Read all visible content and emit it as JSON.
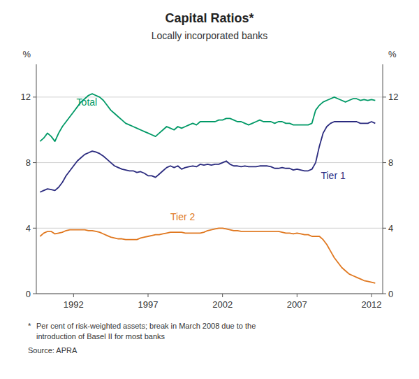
{
  "chart_data": {
    "type": "line",
    "title": "Capital Ratios*",
    "subtitle": "Locally incorporated banks",
    "ylabel": "%",
    "y2label": "%",
    "footnotes": [
      "*",
      "Per cent of risk-weighted assets; break in March 2008 due to the",
      "introduction of Basel II for most banks",
      "Source: APRA"
    ],
    "xlim": [
      1989.5,
      2012.75
    ],
    "xticks": [
      1992,
      1997,
      2002,
      2007,
      2012
    ],
    "ylim": [
      0,
      14
    ],
    "yticks": [
      0,
      4,
      8,
      12
    ],
    "y2lim": [
      0,
      14
    ],
    "y2ticks": [
      0,
      4,
      8,
      12
    ],
    "grid": true,
    "x": [
      1989.75,
      1990.0,
      1990.25,
      1990.5,
      1990.75,
      1991.0,
      1991.25,
      1991.5,
      1991.75,
      1992.0,
      1992.25,
      1992.5,
      1992.75,
      1993.0,
      1993.25,
      1993.5,
      1993.75,
      1994.0,
      1994.25,
      1994.5,
      1994.75,
      1995.0,
      1995.25,
      1995.5,
      1995.75,
      1996.0,
      1996.25,
      1996.5,
      1996.75,
      1997.0,
      1997.25,
      1997.5,
      1997.75,
      1998.0,
      1998.25,
      1998.5,
      1998.75,
      1999.0,
      1999.25,
      1999.5,
      1999.75,
      2000.0,
      2000.25,
      2000.5,
      2000.75,
      2001.0,
      2001.25,
      2001.5,
      2001.75,
      2002.0,
      2002.25,
      2002.5,
      2002.75,
      2003.0,
      2003.25,
      2003.5,
      2003.75,
      2004.0,
      2004.25,
      2004.5,
      2004.75,
      2005.0,
      2005.25,
      2005.5,
      2005.75,
      2006.0,
      2006.25,
      2006.5,
      2006.75,
      2007.0,
      2007.25,
      2007.5,
      2007.75,
      2008.0,
      2008.25,
      2008.5,
      2008.75,
      2009.0,
      2009.25,
      2009.5,
      2009.75,
      2010.0,
      2010.25,
      2010.5,
      2010.75,
      2011.0,
      2011.25,
      2011.5,
      2011.75,
      2012.0,
      2012.25
    ],
    "series": [
      {
        "name": "Total",
        "color": "#009966",
        "label_x": 1992.2,
        "label_y": 11.5,
        "values": [
          9.3,
          9.5,
          9.8,
          9.6,
          9.3,
          9.8,
          10.2,
          10.5,
          10.8,
          11.1,
          11.4,
          11.7,
          11.9,
          12.1,
          12.2,
          12.1,
          12.0,
          11.8,
          11.5,
          11.2,
          11.0,
          10.8,
          10.6,
          10.4,
          10.3,
          10.2,
          10.1,
          10.0,
          9.9,
          9.8,
          9.7,
          9.6,
          9.8,
          10.0,
          10.2,
          10.1,
          10.0,
          10.2,
          10.1,
          10.2,
          10.3,
          10.4,
          10.3,
          10.5,
          10.5,
          10.5,
          10.5,
          10.5,
          10.6,
          10.6,
          10.7,
          10.7,
          10.6,
          10.5,
          10.5,
          10.4,
          10.3,
          10.4,
          10.5,
          10.6,
          10.5,
          10.5,
          10.5,
          10.4,
          10.5,
          10.5,
          10.4,
          10.4,
          10.3,
          10.3,
          10.3,
          10.3,
          10.3,
          10.4,
          11.2,
          11.5,
          11.7,
          11.8,
          11.9,
          12.0,
          11.9,
          11.8,
          11.7,
          11.8,
          11.9,
          11.9,
          11.8,
          11.85,
          11.8,
          11.85,
          11.8
        ]
      },
      {
        "name": "Tier 1",
        "color": "#2B2B7F",
        "label_x": 2008.6,
        "label_y": 7.0,
        "values": [
          6.2,
          6.3,
          6.4,
          6.35,
          6.3,
          6.5,
          6.8,
          7.2,
          7.5,
          7.8,
          8.1,
          8.3,
          8.5,
          8.6,
          8.7,
          8.65,
          8.55,
          8.4,
          8.2,
          8.0,
          7.8,
          7.7,
          7.6,
          7.55,
          7.5,
          7.5,
          7.4,
          7.45,
          7.35,
          7.2,
          7.2,
          7.1,
          7.3,
          7.5,
          7.7,
          7.8,
          7.7,
          7.8,
          7.6,
          7.7,
          7.75,
          7.8,
          7.75,
          7.9,
          7.85,
          7.9,
          7.85,
          7.9,
          7.9,
          8.0,
          8.1,
          7.9,
          7.8,
          7.8,
          7.75,
          7.8,
          7.75,
          7.75,
          7.75,
          7.8,
          7.8,
          7.8,
          7.75,
          7.65,
          7.65,
          7.7,
          7.65,
          7.65,
          7.55,
          7.6,
          7.55,
          7.5,
          7.5,
          7.6,
          8.0,
          9.0,
          9.8,
          10.2,
          10.4,
          10.5,
          10.5,
          10.5,
          10.5,
          10.5,
          10.5,
          10.5,
          10.4,
          10.4,
          10.4,
          10.5,
          10.4
        ]
      },
      {
        "name": "Tier 2",
        "color": "#E07820",
        "label_x": 1998.5,
        "label_y": 4.5,
        "values": [
          3.5,
          3.7,
          3.8,
          3.8,
          3.65,
          3.7,
          3.75,
          3.85,
          3.9,
          3.9,
          3.9,
          3.9,
          3.9,
          3.85,
          3.85,
          3.8,
          3.75,
          3.65,
          3.55,
          3.45,
          3.4,
          3.35,
          3.35,
          3.3,
          3.3,
          3.3,
          3.3,
          3.4,
          3.45,
          3.5,
          3.55,
          3.6,
          3.6,
          3.65,
          3.7,
          3.75,
          3.75,
          3.75,
          3.75,
          3.7,
          3.7,
          3.7,
          3.7,
          3.7,
          3.75,
          3.85,
          3.9,
          3.95,
          4.0,
          4.0,
          3.95,
          3.9,
          3.85,
          3.85,
          3.8,
          3.8,
          3.8,
          3.8,
          3.8,
          3.8,
          3.8,
          3.8,
          3.8,
          3.8,
          3.8,
          3.75,
          3.7,
          3.7,
          3.65,
          3.7,
          3.65,
          3.6,
          3.6,
          3.5,
          3.5,
          3.5,
          3.3,
          3.0,
          2.6,
          2.2,
          1.9,
          1.6,
          1.4,
          1.2,
          1.1,
          1.0,
          0.9,
          0.8,
          0.75,
          0.7,
          0.65
        ]
      }
    ]
  }
}
